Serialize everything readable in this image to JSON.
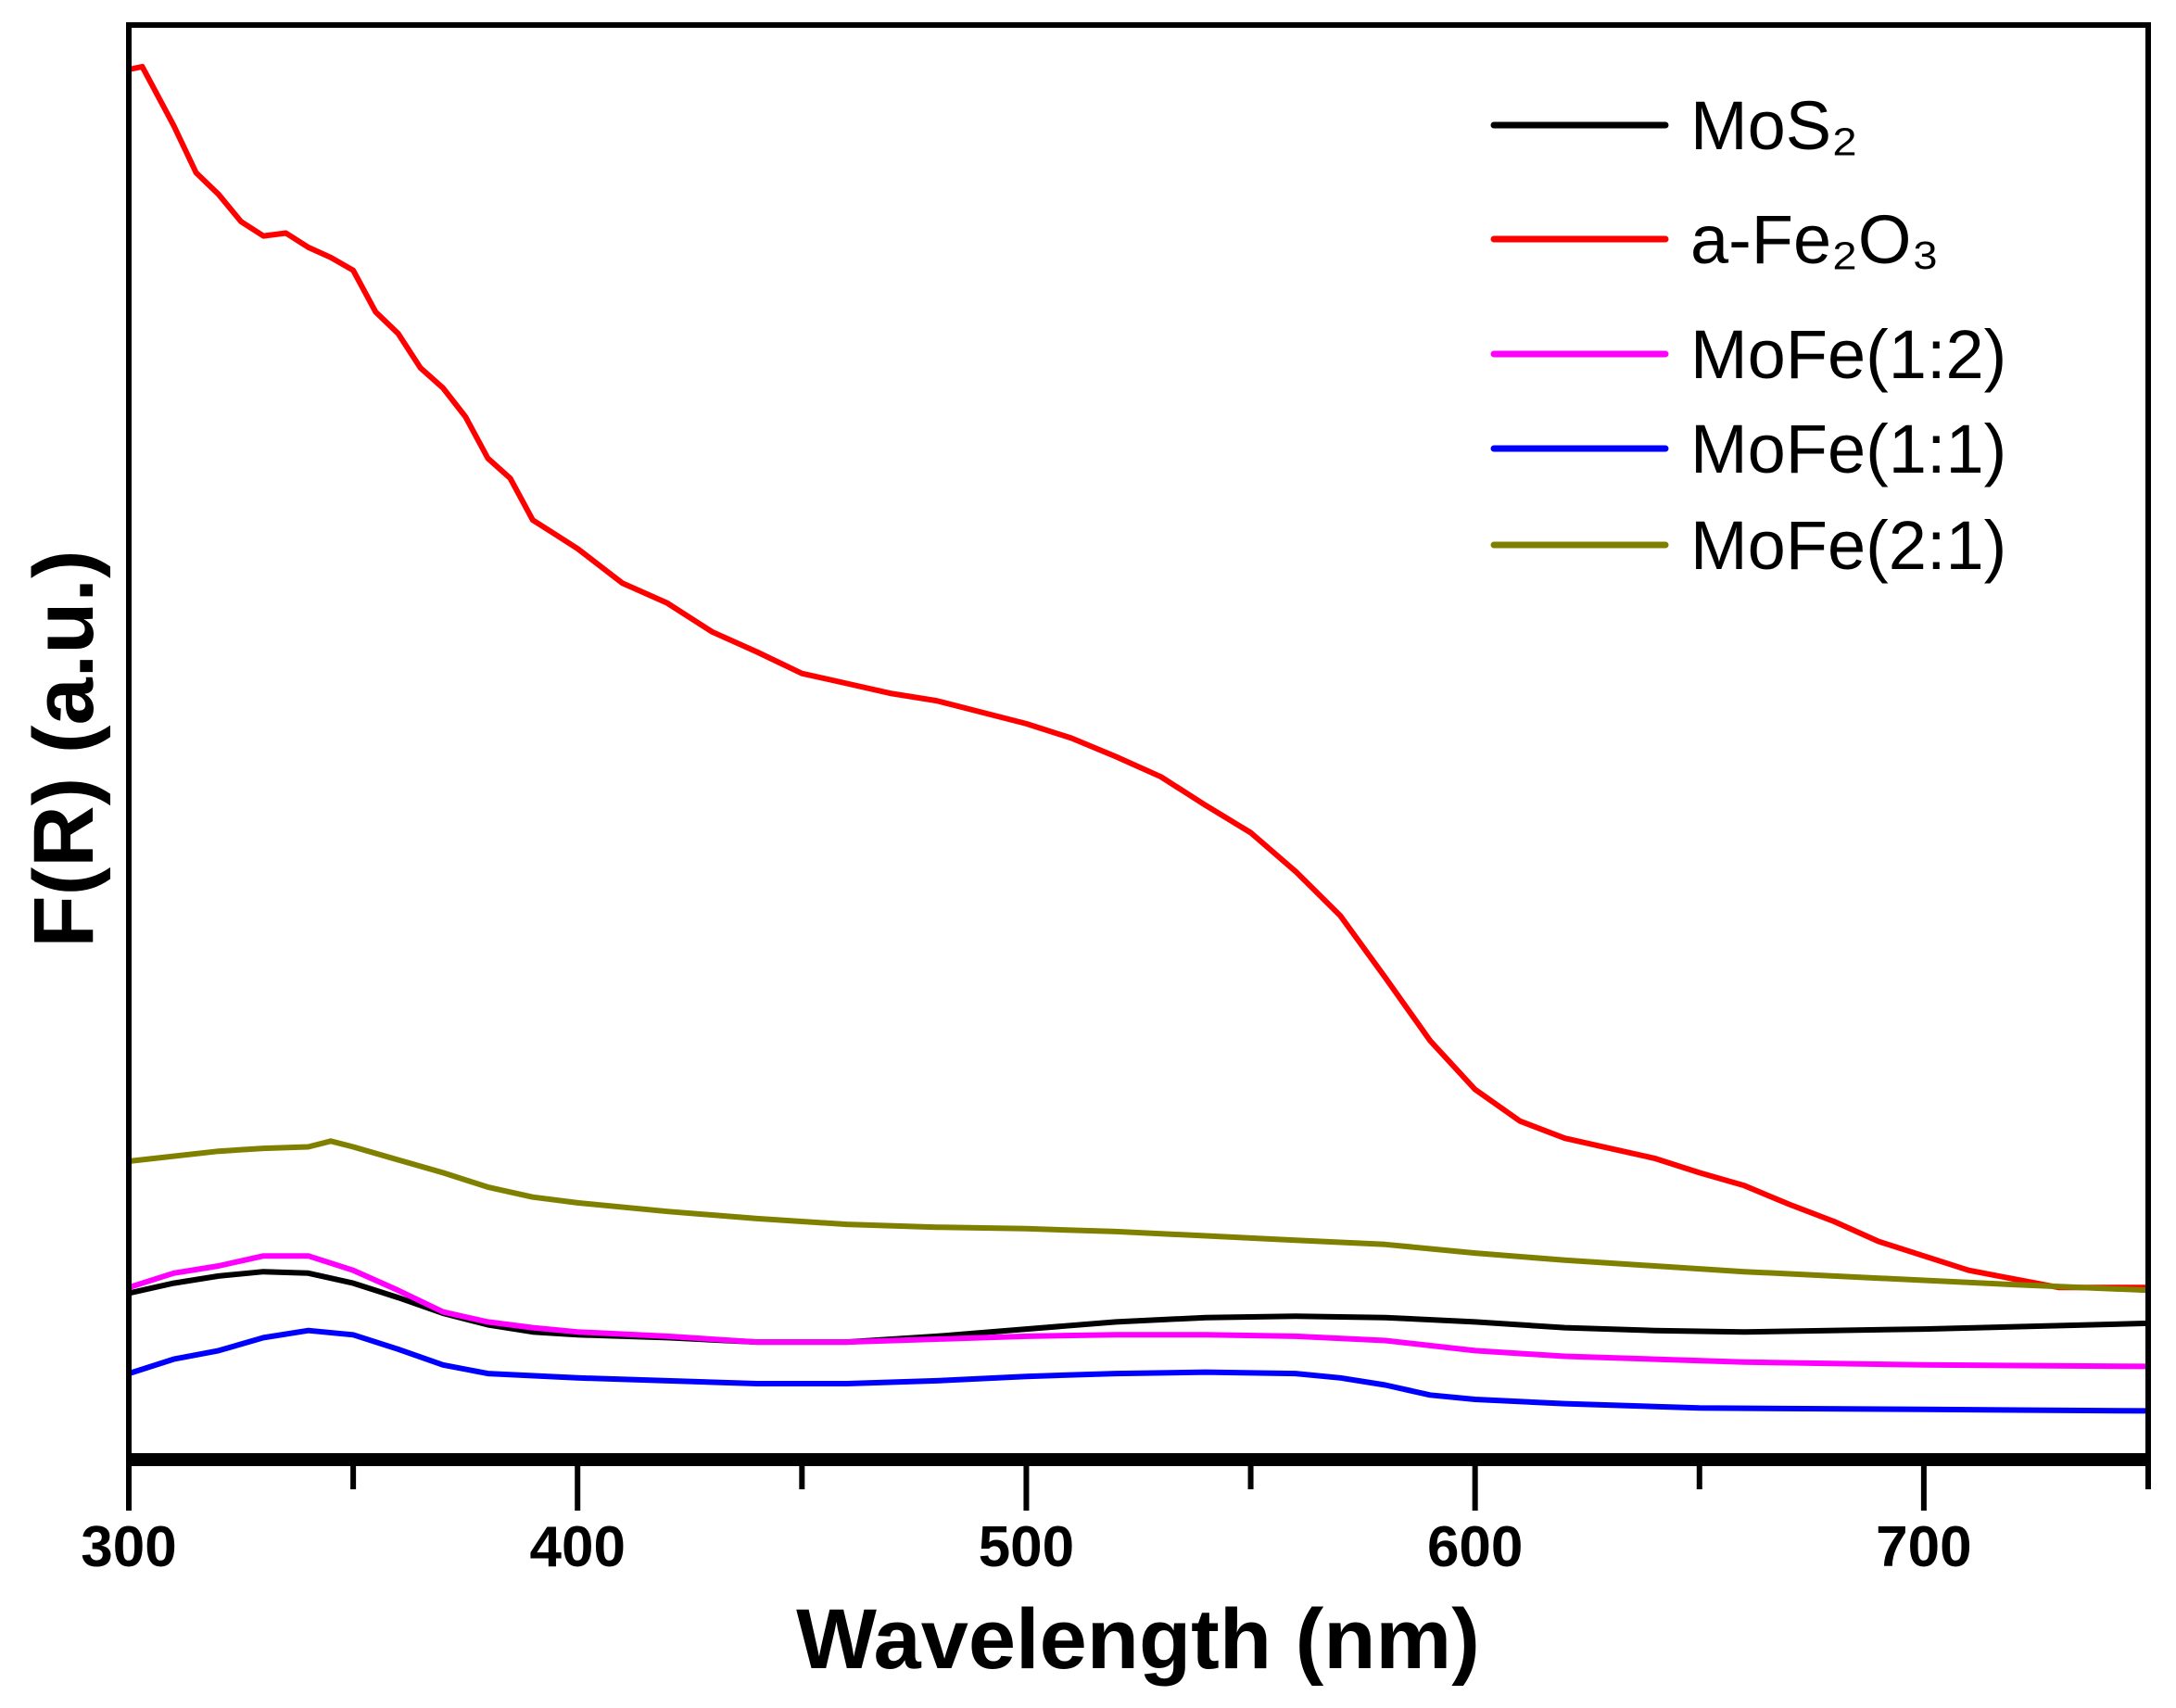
{
  "chart_data": {
    "type": "line",
    "title": "",
    "xlabel": "Wavelength (nm)",
    "ylabel": "F(R) (a.u.)",
    "xlim": [
      300,
      750
    ],
    "ylim": [
      0,
      100
    ],
    "x_ticks": [
      300,
      400,
      500,
      600,
      700
    ],
    "x_tick_labels": [
      "300",
      "400",
      "500",
      "600",
      "700"
    ],
    "x_minor_ticks": [
      350,
      450,
      550,
      650,
      750
    ],
    "grid": false,
    "legend_position": "top-right",
    "series": [
      {
        "name": "MoS₂",
        "color": "#000000",
        "x": [
          300,
          310,
          320,
          330,
          340,
          350,
          360,
          370,
          380,
          390,
          400,
          420,
          440,
          460,
          480,
          500,
          520,
          540,
          560,
          580,
          600,
          620,
          640,
          660,
          700,
          750
        ],
        "y": [
          11.6,
          12.3,
          12.8,
          13.1,
          13.0,
          12.3,
          11.3,
          10.2,
          9.4,
          8.9,
          8.7,
          8.5,
          8.2,
          8.2,
          8.6,
          9.1,
          9.6,
          9.9,
          10.0,
          9.9,
          9.6,
          9.2,
          9.0,
          8.9,
          9.1,
          9.5
        ]
      },
      {
        "name": "a-Fe₂O₃",
        "color": "#ff0000",
        "x": [
          300,
          303,
          310,
          315,
          320,
          325,
          330,
          335,
          340,
          345,
          350,
          355,
          360,
          365,
          370,
          375,
          380,
          385,
          390,
          395,
          400,
          410,
          420,
          430,
          440,
          450,
          460,
          470,
          480,
          490,
          500,
          510,
          520,
          530,
          540,
          550,
          560,
          570,
          580,
          590,
          600,
          610,
          620,
          630,
          640,
          650,
          660,
          670,
          680,
          690,
          700,
          710,
          720,
          730,
          750
        ],
        "y": [
          96.9,
          97.1,
          93.0,
          89.7,
          88.2,
          86.3,
          85.3,
          85.5,
          84.5,
          83.8,
          82.9,
          80.0,
          78.5,
          76.1,
          74.7,
          72.7,
          69.8,
          68.4,
          65.5,
          64.5,
          63.5,
          61.1,
          59.7,
          57.7,
          56.3,
          54.8,
          54.1,
          53.4,
          52.9,
          52.1,
          51.3,
          50.3,
          49.0,
          47.6,
          45.6,
          43.7,
          41.0,
          37.9,
          33.6,
          29.2,
          25.8,
          23.6,
          22.4,
          21.7,
          21.0,
          20.0,
          19.1,
          17.8,
          16.6,
          15.2,
          14.2,
          13.2,
          12.6,
          12.0,
          12.0
        ]
      },
      {
        "name": "MoFe(1:2)",
        "color": "#ff00ff",
        "x": [
          300,
          310,
          320,
          330,
          340,
          350,
          360,
          370,
          380,
          390,
          400,
          420,
          440,
          460,
          480,
          500,
          520,
          540,
          560,
          580,
          600,
          620,
          640,
          660,
          700,
          750
        ],
        "y": [
          12.0,
          13.0,
          13.5,
          14.2,
          14.2,
          13.2,
          11.8,
          10.3,
          9.6,
          9.2,
          8.9,
          8.6,
          8.2,
          8.2,
          8.4,
          8.6,
          8.7,
          8.7,
          8.6,
          8.3,
          7.6,
          7.2,
          7.0,
          6.8,
          6.6,
          6.5
        ]
      },
      {
        "name": "MoFe(1:1)",
        "color": "#0000ff",
        "x": [
          300,
          310,
          320,
          330,
          340,
          350,
          360,
          370,
          380,
          400,
          420,
          440,
          460,
          480,
          500,
          520,
          540,
          560,
          570,
          580,
          590,
          600,
          620,
          650,
          700,
          750
        ],
        "y": [
          6.0,
          7.0,
          7.6,
          8.5,
          9.0,
          8.7,
          7.7,
          6.6,
          6.0,
          5.7,
          5.5,
          5.3,
          5.3,
          5.5,
          5.8,
          6.0,
          6.1,
          6.0,
          5.7,
          5.2,
          4.5,
          4.2,
          3.9,
          3.6,
          3.5,
          3.4
        ]
      },
      {
        "name": "MoFe(2:1)",
        "color": "#808000",
        "x": [
          300,
          320,
          330,
          340,
          345,
          350,
          360,
          370,
          380,
          390,
          400,
          420,
          440,
          460,
          480,
          500,
          520,
          540,
          560,
          580,
          600,
          620,
          640,
          660,
          680,
          700,
          720,
          750
        ],
        "y": [
          20.8,
          21.5,
          21.7,
          21.8,
          22.2,
          21.8,
          20.9,
          20.0,
          19.0,
          18.3,
          17.9,
          17.3,
          16.8,
          16.4,
          16.2,
          16.1,
          15.9,
          15.6,
          15.3,
          15.0,
          14.4,
          13.9,
          13.5,
          13.1,
          12.8,
          12.5,
          12.2,
          11.8
        ]
      }
    ]
  }
}
